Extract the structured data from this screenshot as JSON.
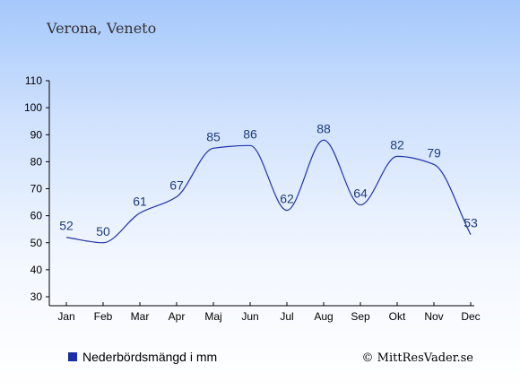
{
  "chart_data": {
    "type": "line",
    "title": "Verona, Veneto",
    "categories": [
      "Jan",
      "Feb",
      "Mar",
      "Apr",
      "Maj",
      "Jun",
      "Jul",
      "Aug",
      "Sep",
      "Okt",
      "Nov",
      "Dec"
    ],
    "series": [
      {
        "name": "Nederbördsmängd i mm",
        "values": [
          52,
          50,
          61,
          67,
          85,
          86,
          62,
          88,
          64,
          82,
          79,
          53
        ]
      }
    ],
    "ylim": [
      30,
      110
    ],
    "yticks": [
      30,
      40,
      50,
      60,
      70,
      80,
      90,
      100,
      110
    ],
    "grid": false,
    "legend": "bottom-left",
    "line_color": "#2233aa",
    "legend_marker_color": "#1a2ea8"
  },
  "copyright": "© MittResVader.se"
}
